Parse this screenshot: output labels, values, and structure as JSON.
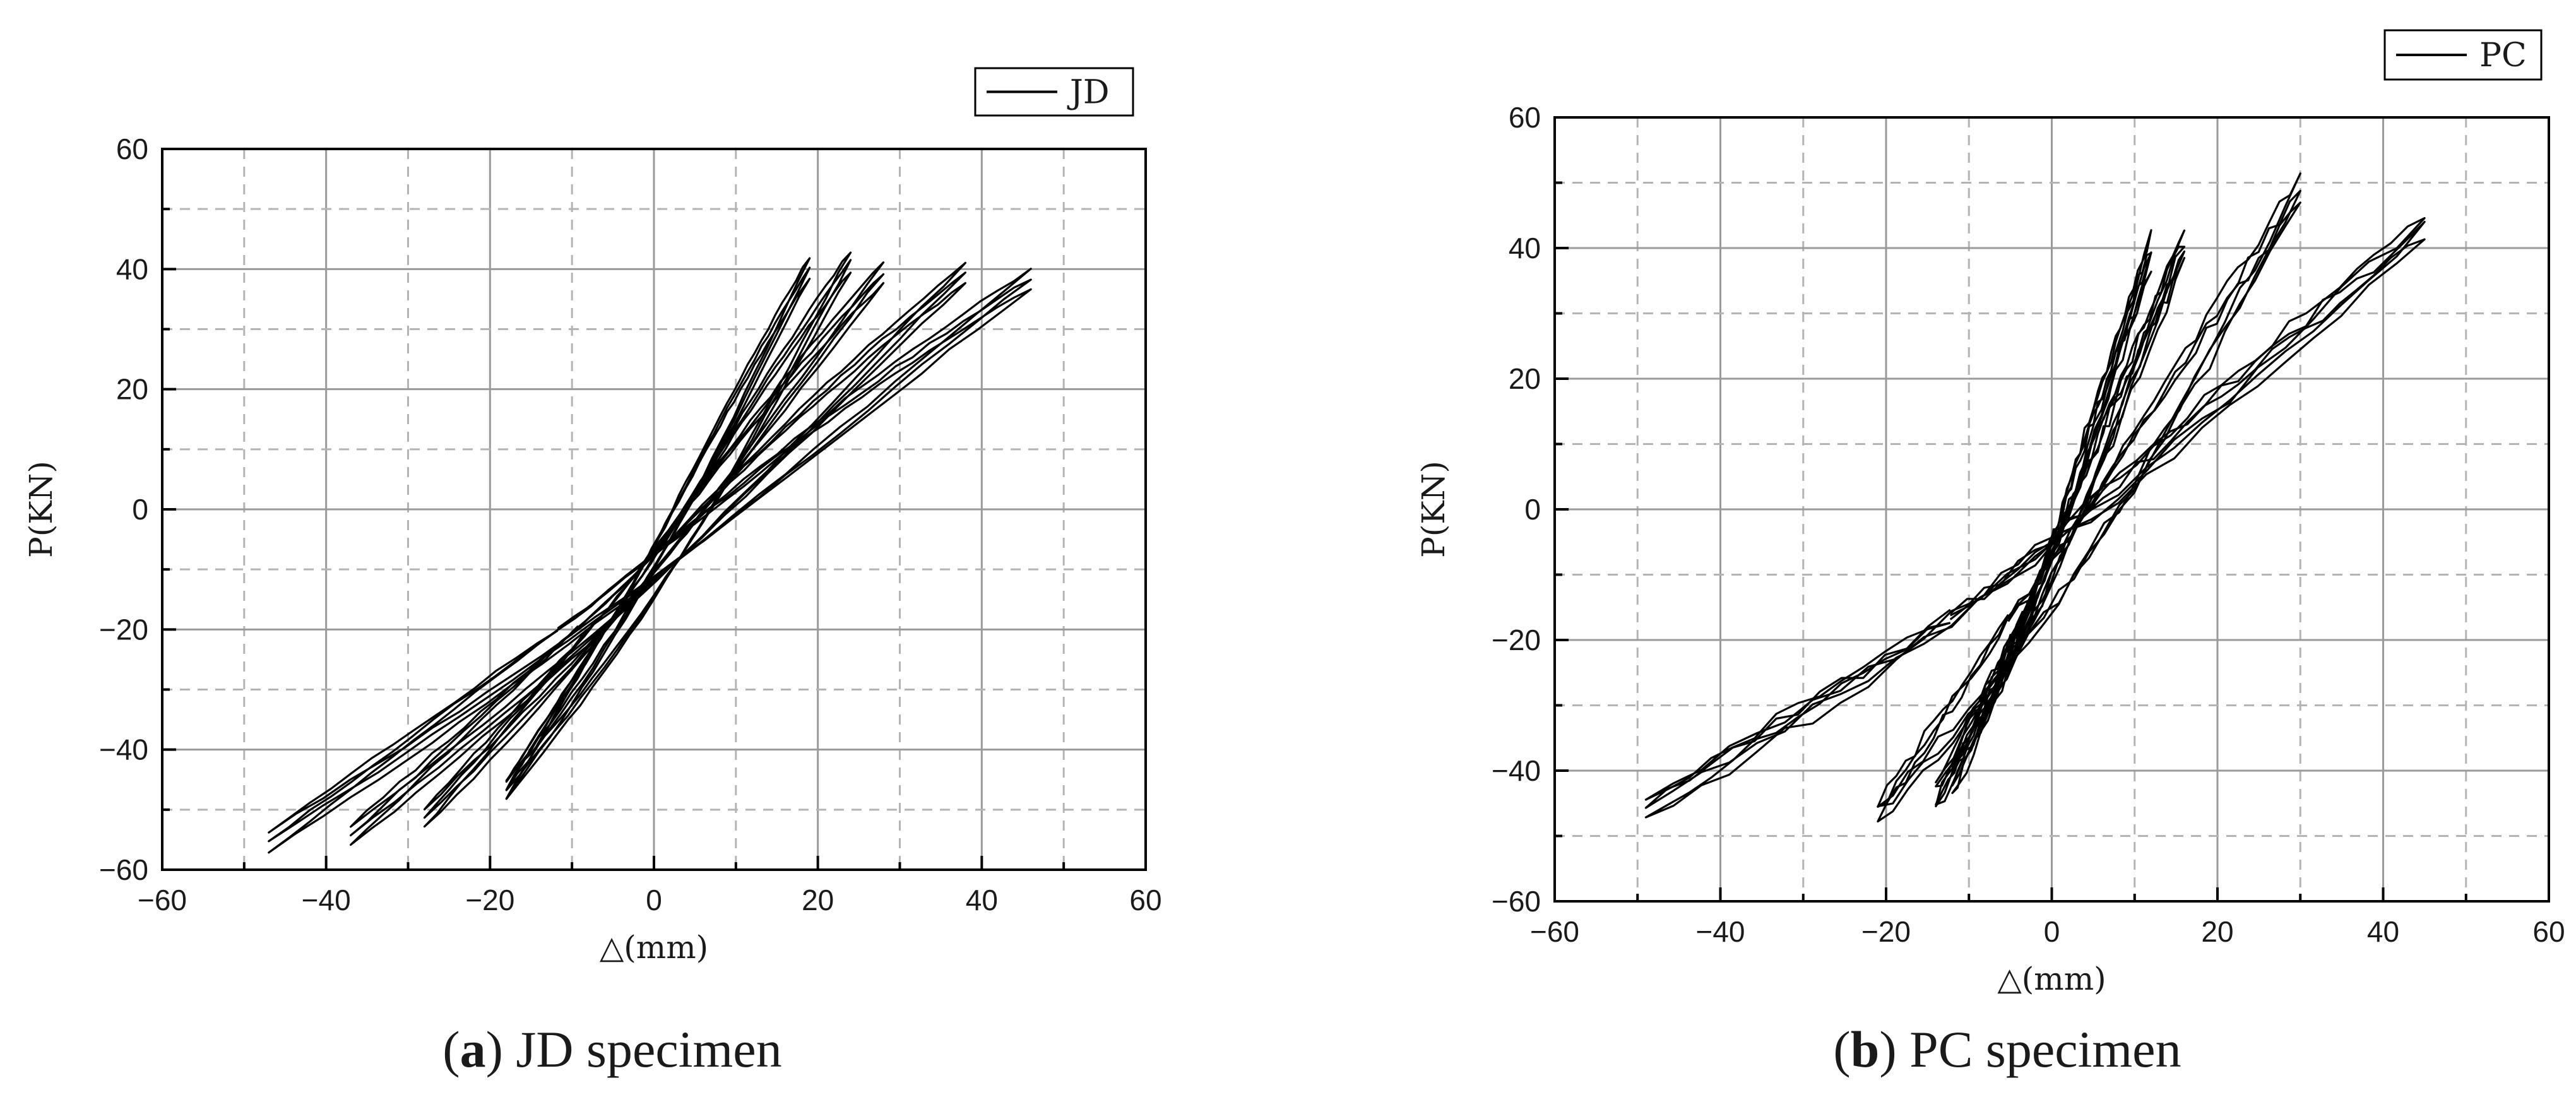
{
  "chart_data": [
    {
      "type": "line",
      "caption_letter": "a",
      "caption_rest": ") JD specimen",
      "legend": "JD",
      "xlabel": "△(mm)",
      "ylabel": "P(KN)",
      "xlim": [
        -60,
        60
      ],
      "ylim": [
        -60,
        60
      ],
      "xticks": [
        "−60",
        "−40",
        "−20",
        "0",
        "20",
        "40",
        "60"
      ],
      "yticks": [
        "60",
        "40",
        "20",
        "0",
        "−20",
        "−40",
        "−60"
      ],
      "grid": true,
      "legend_position": "top-right",
      "series": [
        {
          "name": "JD",
          "loops": [
            {
              "pos": [
                19,
                42
              ],
              "neg": [
                -18,
                -48
              ],
              "repeats": 3
            },
            {
              "pos": [
                24,
                43
              ],
              "neg": [
                -18,
                -48
              ],
              "repeats": 3
            },
            {
              "pos": [
                28,
                41
              ],
              "neg": [
                -28,
                -53
              ],
              "repeats": 3
            },
            {
              "pos": [
                38,
                41
              ],
              "neg": [
                -37,
                -56
              ],
              "repeats": 3
            },
            {
              "pos": [
                46,
                40
              ],
              "neg": [
                -47,
                -57
              ],
              "repeats": 3
            }
          ]
        }
      ]
    },
    {
      "type": "line",
      "caption_letter": "b",
      "caption_rest": ") PC specimen",
      "legend": "PC",
      "xlabel": "△(mm)",
      "ylabel": "P(KN)",
      "xlim": [
        -60,
        60
      ],
      "ylim": [
        -60,
        60
      ],
      "xticks": [
        "−60",
        "−40",
        "−20",
        "0",
        "20",
        "40",
        "60"
      ],
      "yticks": [
        "60",
        "40",
        "20",
        "0",
        "−20",
        "−40",
        "−60"
      ],
      "grid": true,
      "legend_position": "top-right",
      "series": [
        {
          "name": "PC",
          "loops": [
            {
              "pos": [
                12,
                42
              ],
              "neg": [
                -12,
                -44
              ],
              "repeats": 4
            },
            {
              "pos": [
                16,
                43
              ],
              "neg": [
                -14,
                -46
              ],
              "repeats": 4
            },
            {
              "pos": [
                30,
                51
              ],
              "neg": [
                -21,
                -48
              ],
              "repeats": 3
            },
            {
              "pos": [
                45,
                45
              ],
              "neg": [
                -49,
                -47
              ],
              "repeats": 3
            }
          ]
        }
      ]
    }
  ]
}
